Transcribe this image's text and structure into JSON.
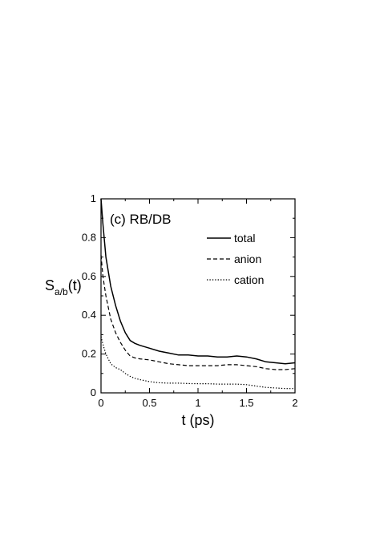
{
  "chart_data": {
    "type": "line",
    "title": "",
    "panel_label": "(c) RB/DB",
    "xlabel": "t (ps)",
    "ylabel": {
      "main": "S",
      "subscript": "a/b",
      "suffix": "(t)"
    },
    "xlim": [
      0,
      2
    ],
    "ylim": [
      0,
      1
    ],
    "x_ticks": [
      0,
      0.5,
      1,
      1.5,
      2
    ],
    "x_tick_labels": [
      "0",
      "0.5",
      "1",
      "1.5",
      "2"
    ],
    "y_ticks": [
      0,
      0.2,
      0.4,
      0.6,
      0.8,
      1
    ],
    "y_tick_labels": [
      "0",
      "0.2",
      "0.4",
      "0.6",
      "0.8",
      "1"
    ],
    "grid": false,
    "legend_position": "top-right",
    "series": [
      {
        "name": "total",
        "style": "solid",
        "x": [
          0,
          0.02,
          0.05,
          0.1,
          0.15,
          0.2,
          0.25,
          0.3,
          0.35,
          0.4,
          0.5,
          0.6,
          0.7,
          0.8,
          0.9,
          1.0,
          1.1,
          1.2,
          1.3,
          1.4,
          1.5,
          1.6,
          1.7,
          1.8,
          1.9,
          2.0
        ],
        "y": [
          1.0,
          0.87,
          0.7,
          0.55,
          0.45,
          0.37,
          0.31,
          0.27,
          0.255,
          0.245,
          0.23,
          0.215,
          0.205,
          0.195,
          0.195,
          0.19,
          0.19,
          0.185,
          0.185,
          0.19,
          0.185,
          0.175,
          0.16,
          0.155,
          0.15,
          0.155
        ]
      },
      {
        "name": "anion",
        "style": "dashed",
        "x": [
          0,
          0.02,
          0.05,
          0.1,
          0.15,
          0.2,
          0.25,
          0.3,
          0.35,
          0.4,
          0.5,
          0.6,
          0.7,
          0.8,
          0.9,
          1.0,
          1.1,
          1.2,
          1.3,
          1.4,
          1.5,
          1.6,
          1.7,
          1.8,
          1.9,
          2.0
        ],
        "y": [
          0.71,
          0.6,
          0.5,
          0.38,
          0.31,
          0.26,
          0.22,
          0.19,
          0.18,
          0.175,
          0.17,
          0.16,
          0.15,
          0.145,
          0.14,
          0.14,
          0.14,
          0.14,
          0.145,
          0.145,
          0.14,
          0.135,
          0.125,
          0.12,
          0.12,
          0.125
        ]
      },
      {
        "name": "cation",
        "style": "dotted",
        "x": [
          0,
          0.02,
          0.05,
          0.1,
          0.15,
          0.2,
          0.25,
          0.3,
          0.35,
          0.4,
          0.5,
          0.6,
          0.7,
          0.8,
          0.9,
          1.0,
          1.1,
          1.2,
          1.3,
          1.4,
          1.5,
          1.6,
          1.7,
          1.8,
          1.9,
          2.0
        ],
        "y": [
          0.29,
          0.25,
          0.2,
          0.15,
          0.13,
          0.12,
          0.1,
          0.085,
          0.075,
          0.068,
          0.058,
          0.052,
          0.05,
          0.05,
          0.048,
          0.047,
          0.047,
          0.045,
          0.045,
          0.045,
          0.042,
          0.035,
          0.028,
          0.025,
          0.022,
          0.022
        ]
      }
    ]
  }
}
